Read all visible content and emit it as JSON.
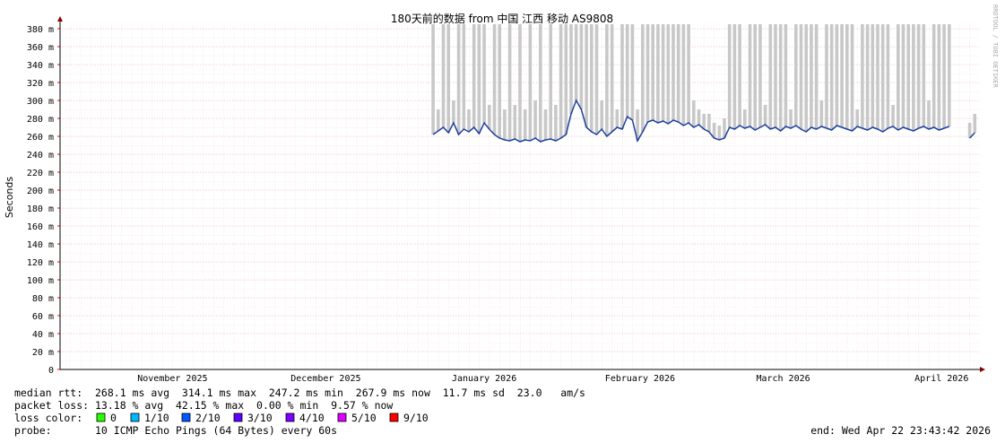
{
  "chart_data": {
    "type": "smokeping",
    "title": "180天前的数据 from 中国 江西 移动 AS9808",
    "y_label": "Seconds",
    "watermark": "RRDTOOL / TOBI OETIKER",
    "xlim": [
      0,
      180
    ],
    "ylim": [
      0,
      385
    ],
    "xticks": [
      {
        "value": 22,
        "label": "November 2025"
      },
      {
        "value": 52,
        "label": "December 2025"
      },
      {
        "value": 83,
        "label": "January 2026"
      },
      {
        "value": 113.5,
        "label": "February 2026"
      },
      {
        "value": 141.5,
        "label": "March 2026"
      },
      {
        "value": 172.5,
        "label": "April 2026"
      }
    ],
    "yticks": [
      0,
      {
        "value": 20,
        "label": "20 m"
      },
      {
        "value": 40,
        "label": "40 m"
      },
      {
        "value": 60,
        "label": "60 m"
      },
      {
        "value": 80,
        "label": "80 m"
      },
      {
        "value": 100,
        "label": "100 m"
      },
      {
        "value": 120,
        "label": "120 m"
      },
      {
        "value": 140,
        "label": "140 m"
      },
      {
        "value": 160,
        "label": "160 m"
      },
      {
        "value": 180,
        "label": "180 m"
      },
      {
        "value": 200,
        "label": "200 m"
      },
      {
        "value": 220,
        "label": "220 m"
      },
      {
        "value": 240,
        "label": "240 m"
      },
      {
        "value": 260,
        "label": "260 m"
      },
      {
        "value": 280,
        "label": "280 m"
      },
      {
        "value": 300,
        "label": "300 m"
      },
      {
        "value": 320,
        "label": "320 m"
      },
      {
        "value": 340,
        "label": "340 m"
      },
      {
        "value": 360,
        "label": "360 m"
      },
      {
        "value": 380,
        "label": "380 m"
      }
    ],
    "grid": true,
    "series": [
      {
        "color": "#1b3f9e",
        "values": [
          null,
          null,
          null,
          null,
          null,
          null,
          null,
          null,
          null,
          null,
          null,
          null,
          null,
          null,
          null,
          null,
          null,
          null,
          null,
          null,
          null,
          null,
          null,
          null,
          null,
          null,
          null,
          null,
          null,
          null,
          null,
          null,
          null,
          null,
          null,
          null,
          null,
          null,
          null,
          null,
          null,
          null,
          null,
          null,
          null,
          null,
          null,
          null,
          null,
          null,
          null,
          null,
          null,
          null,
          null,
          null,
          null,
          null,
          null,
          null,
          null,
          null,
          null,
          null,
          null,
          null,
          null,
          null,
          null,
          null,
          null,
          null,
          null,
          262,
          266,
          270,
          264,
          275,
          262,
          268,
          265,
          270,
          263,
          275,
          268,
          262,
          258,
          256,
          255,
          257,
          254,
          256,
          255,
          258,
          254,
          256,
          257,
          255,
          258,
          262,
          285,
          300,
          290,
          270,
          265,
          262,
          268,
          260,
          265,
          270,
          268,
          282,
          278,
          255,
          265,
          276,
          278,
          275,
          277,
          274,
          278,
          276,
          272,
          275,
          270,
          273,
          268,
          265,
          258,
          256,
          258,
          270,
          268,
          272,
          269,
          271,
          267,
          270,
          273,
          268,
          270,
          266,
          271,
          269,
          272,
          268,
          265,
          270,
          268,
          271,
          269,
          267,
          272,
          270,
          268,
          266,
          271,
          269,
          267,
          270,
          268,
          265,
          269,
          271,
          267,
          270,
          268,
          266,
          269,
          271,
          268,
          270,
          267,
          269,
          271,
          null,
          null,
          null,
          258,
          264
        ]
      },
      {
        "color": "#c8c8c8",
        "values": [
          null,
          null,
          null,
          null,
          null,
          null,
          null,
          null,
          null,
          null,
          null,
          null,
          null,
          null,
          null,
          null,
          null,
          null,
          null,
          null,
          null,
          null,
          null,
          null,
          null,
          null,
          null,
          null,
          null,
          null,
          null,
          null,
          null,
          null,
          null,
          null,
          null,
          null,
          null,
          null,
          null,
          null,
          null,
          null,
          null,
          null,
          null,
          null,
          null,
          null,
          null,
          null,
          null,
          null,
          null,
          null,
          null,
          null,
          null,
          null,
          null,
          null,
          null,
          null,
          null,
          null,
          null,
          null,
          null,
          null,
          null,
          null,
          null,
          385,
          290,
          385,
          385,
          300,
          385,
          385,
          290,
          385,
          385,
          385,
          295,
          385,
          385,
          290,
          385,
          295,
          385,
          290,
          385,
          300,
          385,
          290,
          385,
          295,
          385,
          385,
          385,
          385,
          385,
          385,
          385,
          385,
          300,
          385,
          385,
          290,
          385,
          385,
          385,
          290,
          385,
          385,
          385,
          385,
          385,
          385,
          385,
          385,
          385,
          385,
          300,
          290,
          285,
          285,
          275,
          272,
          280,
          385,
          385,
          385,
          290,
          385,
          385,
          385,
          295,
          385,
          385,
          385,
          385,
          290,
          385,
          385,
          385,
          385,
          385,
          300,
          385,
          385,
          385,
          385,
          385,
          385,
          290,
          385,
          385,
          385,
          385,
          385,
          385,
          295,
          385,
          385,
          385,
          385,
          385,
          385,
          300,
          385,
          385,
          385,
          385,
          null,
          null,
          null,
          275,
          285
        ]
      }
    ],
    "stats": [
      "median rtt:  268.1 ms avg  314.1 ms max  247.2 ms min  267.9 ms now  11.7 ms sd  23.0   am/s",
      "packet loss: 13.18 % avg  42.15 % max  0.00 % min  9.57 % now"
    ],
    "loss_color_label": "loss color:",
    "loss_colors": [
      {
        "label": "0",
        "color": "#26ff00"
      },
      {
        "label": "1/10",
        "color": "#00b8ff"
      },
      {
        "label": "2/10",
        "color": "#0059ff"
      },
      {
        "label": "3/10",
        "color": "#5e00ff"
      },
      {
        "label": "4/10",
        "color": "#7e00ff"
      },
      {
        "label": "5/10",
        "color": "#dd00ff"
      },
      {
        "label": "9/10",
        "color": "#ff0000"
      }
    ],
    "probe": "probe:       10 ICMP Echo Pings (64 Bytes) every 60s",
    "end": "end: Wed Apr 22 23:43:42 2026"
  }
}
